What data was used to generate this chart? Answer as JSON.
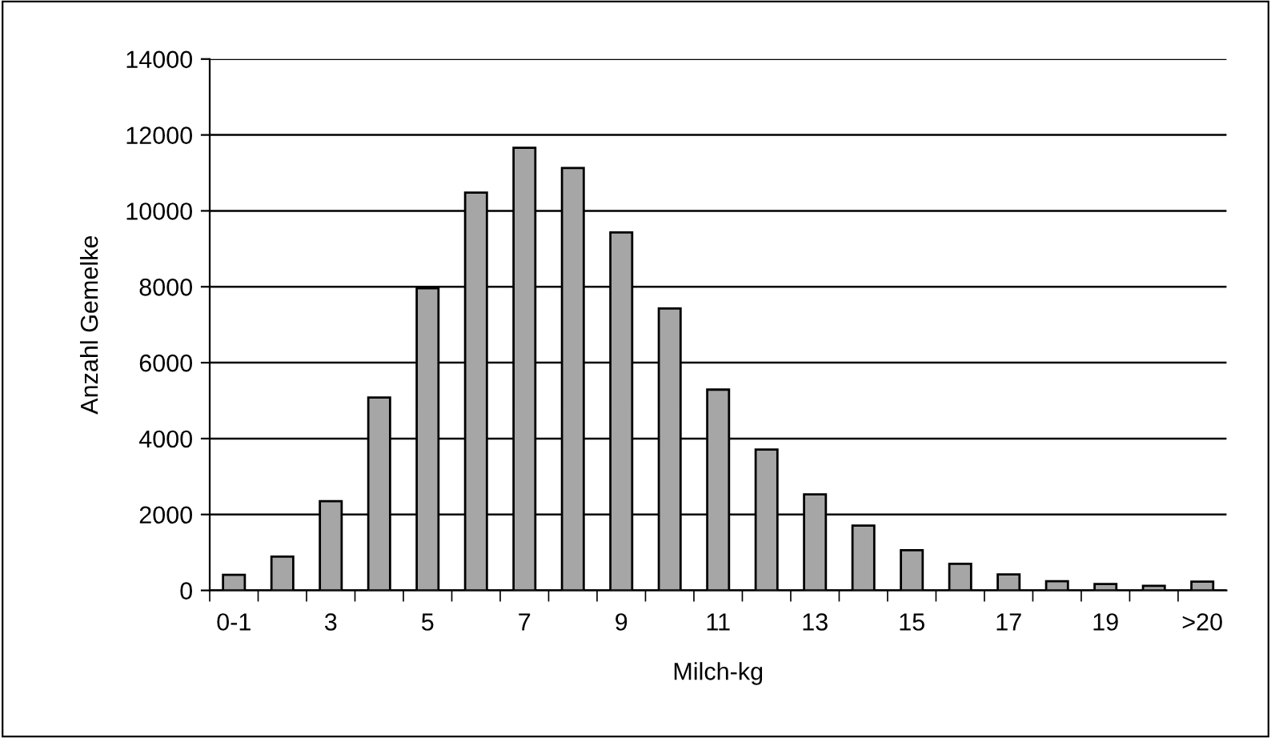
{
  "chart_data": {
    "type": "bar",
    "xlabel": "Milch-kg",
    "ylabel": "Anzahl Gemelke",
    "categories": [
      "0-1",
      null,
      "3",
      null,
      "5",
      null,
      "7",
      null,
      "9",
      null,
      "11",
      null,
      "13",
      null,
      "15",
      null,
      "17",
      null,
      "19",
      null,
      ">20"
    ],
    "values": [
      410,
      890,
      2350,
      5080,
      7960,
      10480,
      11660,
      11130,
      9430,
      7430,
      5290,
      3710,
      2530,
      1710,
      1060,
      700,
      420,
      240,
      170,
      120,
      230
    ],
    "color": "#a6a6a6",
    "ylim": [
      0,
      14000
    ],
    "yticks": [
      0,
      2000,
      4000,
      6000,
      8000,
      10000,
      12000,
      14000
    ],
    "grid": "y",
    "legend": false
  }
}
